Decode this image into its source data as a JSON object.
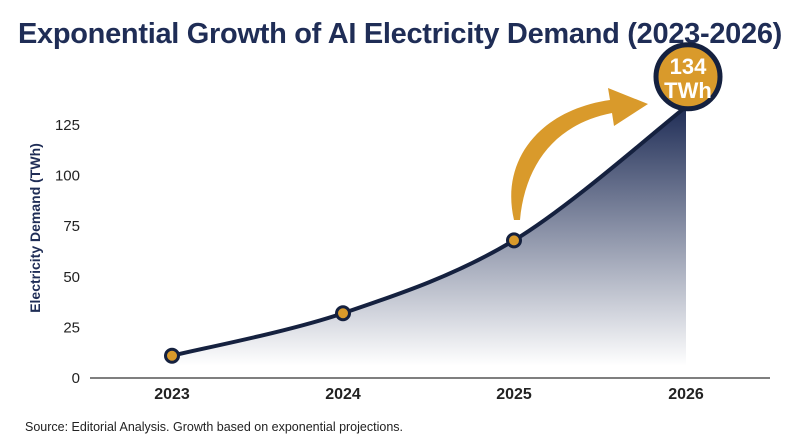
{
  "chart_data": {
    "type": "area",
    "title": "Exponential Growth of AI Electricity Demand (2023-2026)",
    "ylabel": "Electricity Demand (TWh)",
    "xlabel": "",
    "categories": [
      "2023",
      "2024",
      "2025",
      "2026"
    ],
    "values": [
      11,
      32,
      68,
      134
    ],
    "ylim": [
      0,
      125
    ],
    "yticks": [
      0,
      25,
      50,
      75,
      100,
      125
    ],
    "grid": false,
    "annotation": {
      "value_label": "134",
      "unit_label": "TWh"
    },
    "colors": {
      "line": "#15213f",
      "area_top": "#1f2d56",
      "marker": "#d99a2b",
      "arrow": "#d99a2b",
      "badge": "#d99a2b"
    }
  },
  "source": "Source: Editorial Analysis. Growth based on exponential projections."
}
